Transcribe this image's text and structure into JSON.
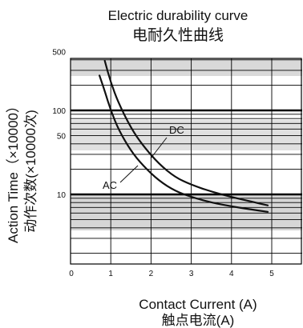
{
  "chart_data": {
    "type": "line",
    "title": "Electric durability curve",
    "subtitle": "电耐久性曲线",
    "xlabel": "Contact Current (A)",
    "xlabel_cn": "触点电流(A)",
    "ylabel": "Action Time（×10000）",
    "ylabel_cn": "动作次数(×10000次)",
    "x_ticks": [
      "0",
      "1",
      "2",
      "3",
      "4",
      "5"
    ],
    "xlim": [
      0,
      5.5
    ],
    "y_scale": "log",
    "y_ticks": [
      "500",
      "100",
      "50",
      "10"
    ],
    "ylim": [
      1,
      700
    ],
    "grid": true,
    "series": [
      {
        "name": "AC",
        "x": [
          0.72,
          0.85,
          1.0,
          1.2,
          1.5,
          1.8,
          2.2,
          2.6,
          3.0,
          3.5,
          4.0,
          4.5,
          4.9
        ],
        "y": [
          260,
          170,
          100,
          58,
          33,
          22,
          14.5,
          11,
          9.3,
          8.0,
          7.2,
          6.6,
          6.2
        ]
      },
      {
        "name": "DC",
        "x": [
          0.85,
          1.0,
          1.2,
          1.5,
          1.8,
          2.2,
          2.6,
          3.0,
          3.5,
          4.0,
          4.5,
          4.9
        ],
        "y": [
          390,
          215,
          120,
          62,
          38,
          23,
          16,
          13,
          10.8,
          9.3,
          8.2,
          7.4
        ]
      }
    ],
    "annotations": [
      "AC",
      "DC"
    ]
  }
}
